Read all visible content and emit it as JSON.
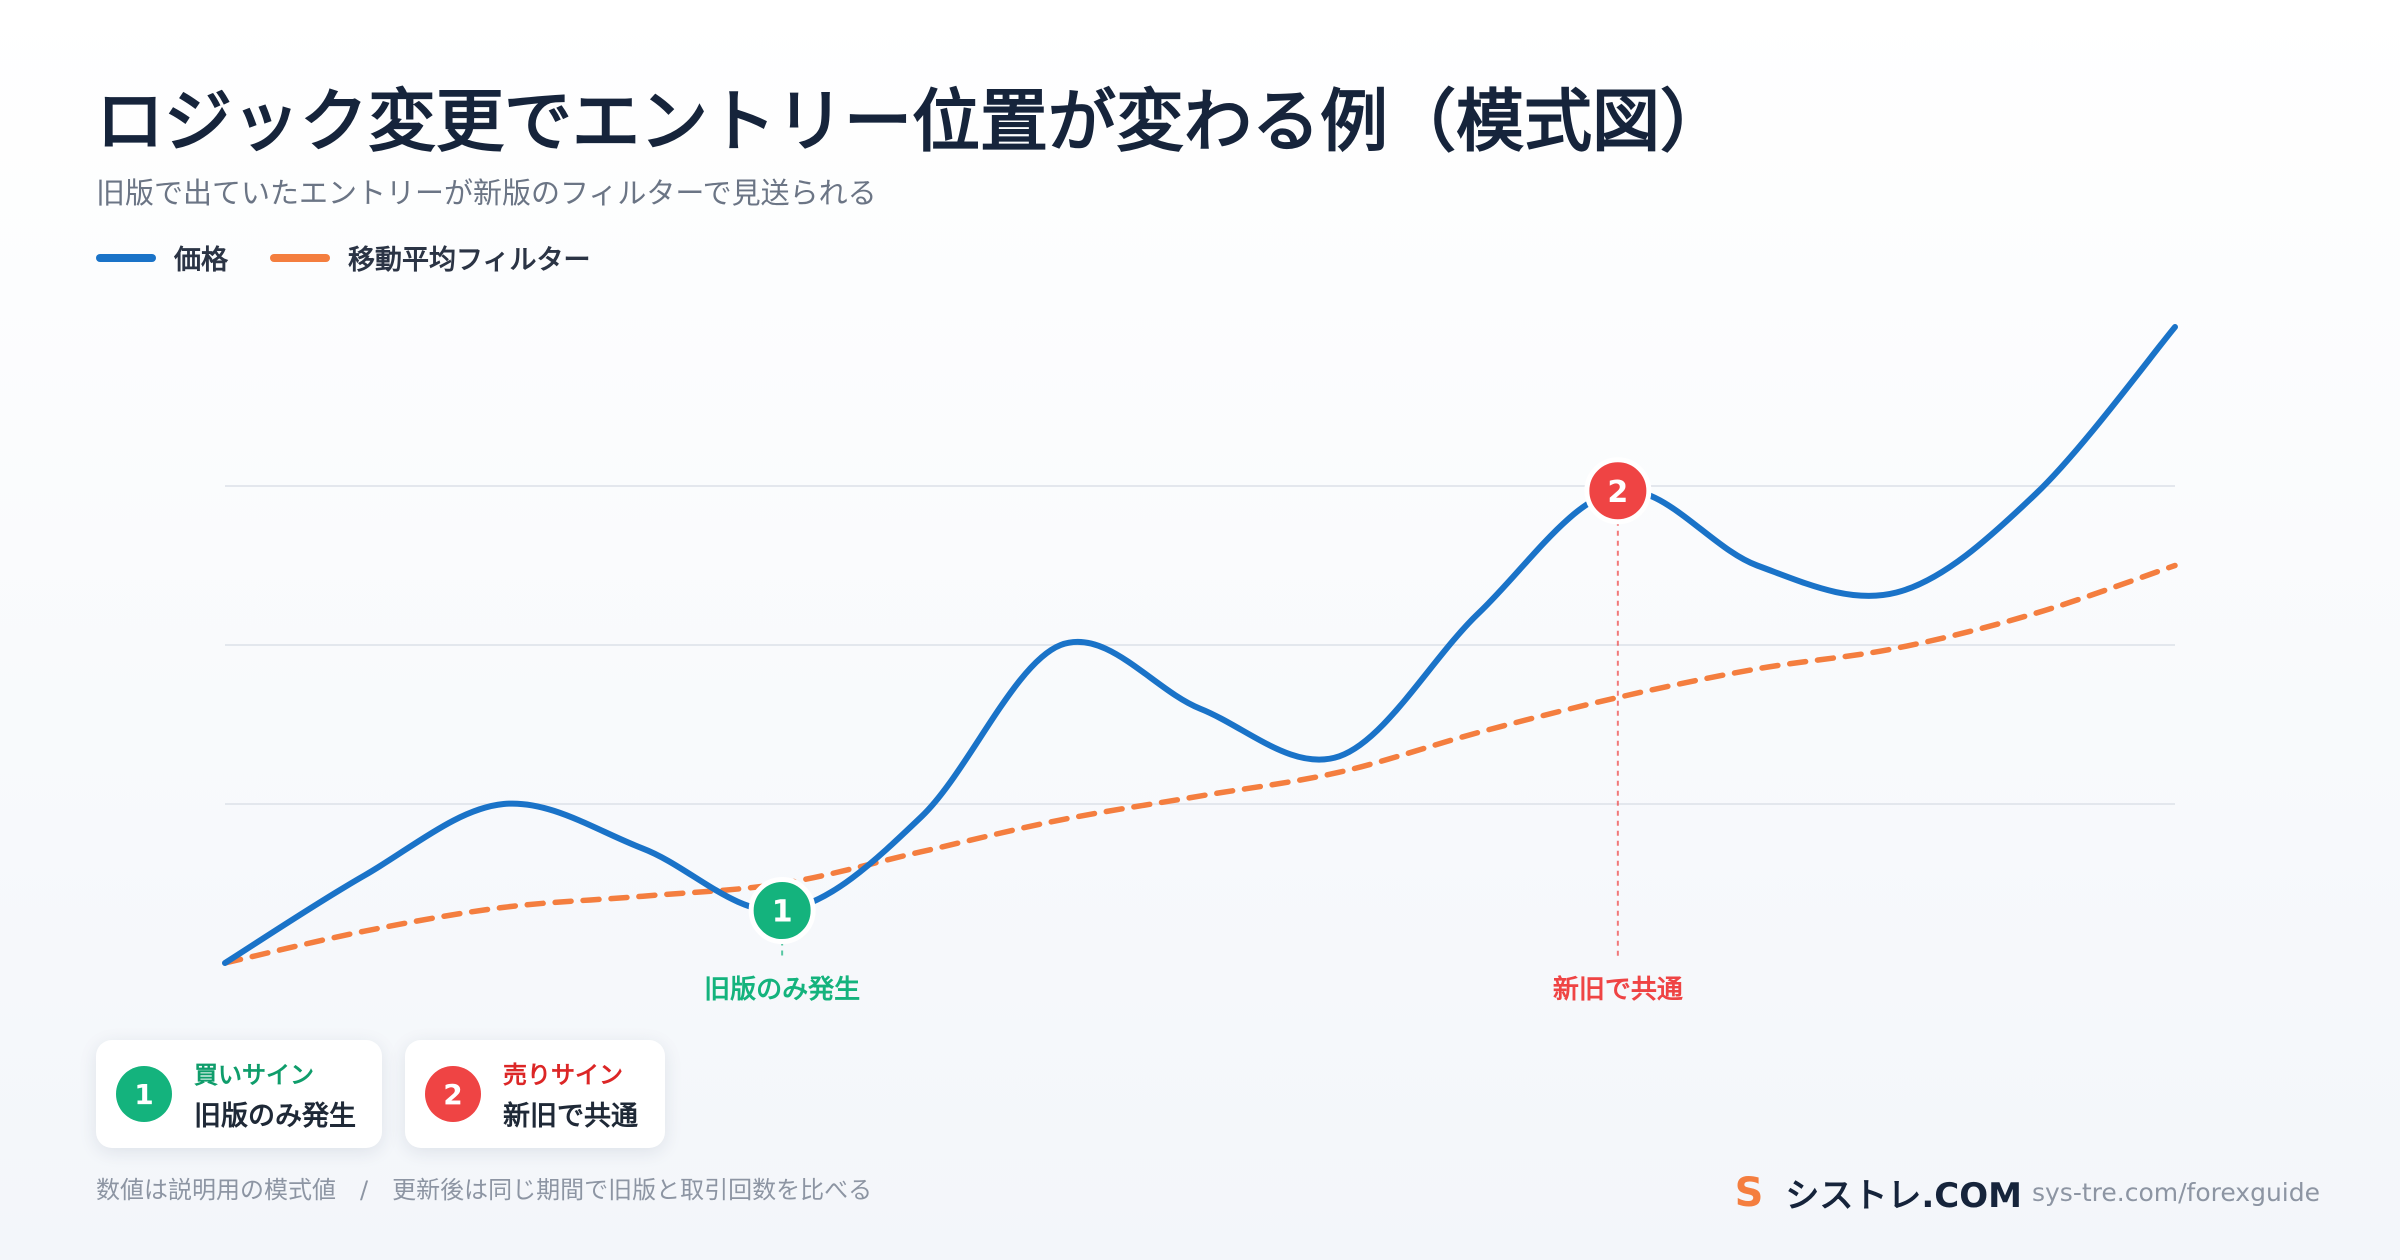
{
  "title": "ロジック変更でエントリー位置が変わる例（模式図）",
  "subtitle": "旧版で出ていたエントリーが新版のフィルターで見送られる",
  "legend": [
    {
      "label": "価格",
      "color": "#1a73c8"
    },
    {
      "label": "移動平均フィルター",
      "color": "#f47e3f"
    }
  ],
  "chart_data": {
    "type": "line",
    "title": "ロジック変更でエントリー位置が変わる例（模式図）",
    "xlabel": "",
    "ylabel": "",
    "grid": true,
    "legend_position": "top-left",
    "ylim": [
      0,
      4
    ],
    "x": [
      0,
      1,
      2,
      3,
      4,
      5,
      6,
      7,
      8,
      9,
      10,
      11,
      12,
      13,
      14
    ],
    "series": [
      {
        "name": "価格",
        "color": "#1a73c8",
        "style": "solid",
        "values": [
          0.0,
          0.55,
          1.0,
          0.72,
          0.33,
          0.92,
          2.0,
          1.6,
          1.3,
          2.2,
          2.97,
          2.5,
          2.33,
          2.95,
          4.0
        ]
      },
      {
        "name": "移動平均フィルター",
        "color": "#f47e3f",
        "style": "dashed",
        "values": [
          0.0,
          0.2,
          0.35,
          0.42,
          0.5,
          0.7,
          0.9,
          1.05,
          1.2,
          1.45,
          1.67,
          1.85,
          1.98,
          2.2,
          2.5
        ]
      }
    ],
    "markers": [
      {
        "number": "1",
        "x": 4,
        "y": 0.33,
        "label": "旧版のみ発生",
        "color": "#14b37d"
      },
      {
        "number": "2",
        "x": 10,
        "y": 2.97,
        "label": "新旧で共通",
        "color": "#ef4444"
      }
    ]
  },
  "cards": [
    {
      "number": "1",
      "kind": "買いサイン",
      "desc": "旧版のみ発生",
      "badge_color": "#14b37d",
      "kind_color": "#0f9d6b"
    },
    {
      "number": "2",
      "kind": "売りサイン",
      "desc": "新旧で共通",
      "badge_color": "#ef4444",
      "kind_color": "#dc2626"
    }
  ],
  "footnote": "数値は説明用の模式値　/　更新後は同じ期間で旧版と取引回数を比べる",
  "brand": {
    "mark": "S",
    "name": "シストレ.COM",
    "url": "sys-tre.com/forexguide"
  }
}
